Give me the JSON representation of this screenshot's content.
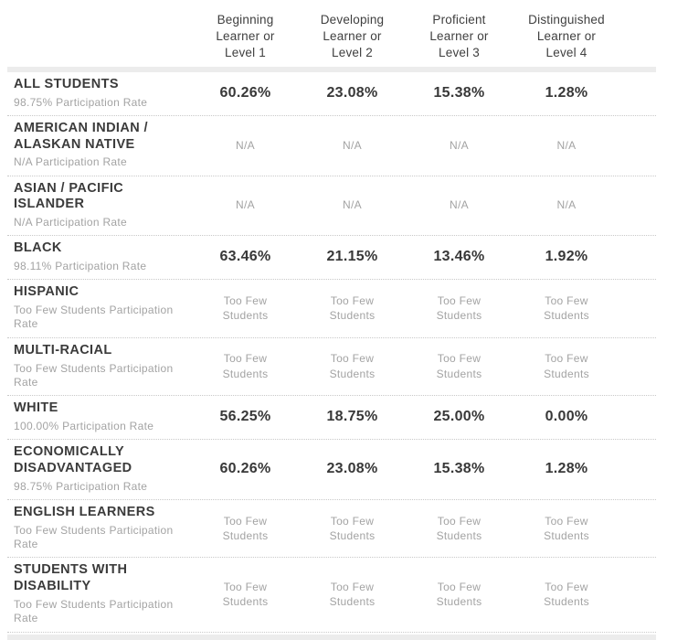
{
  "colors": {
    "text_dark": "#3b3b3b",
    "text_muted": "#a3a3a3",
    "divider_dotted": "#c9c9c9",
    "band_gray": "#ececec",
    "background": "#ffffff"
  },
  "chart_data": {
    "type": "table",
    "columns": [
      "Beginning Learner or Level 1",
      "Developing Learner or Level 2",
      "Proficient Learner or Level 3",
      "Distinguished Learner or Level 4"
    ],
    "rows": [
      {
        "name": "ALL STUDENTS",
        "participation": "98.75% Participation Rate",
        "values": [
          "60.26%",
          "23.08%",
          "15.38%",
          "1.28%"
        ]
      },
      {
        "name": "AMERICAN INDIAN / ALASKAN NATIVE",
        "participation": "N/A Participation Rate",
        "values": [
          "N/A",
          "N/A",
          "N/A",
          "N/A"
        ]
      },
      {
        "name": "ASIAN / PACIFIC ISLANDER",
        "participation": "N/A Participation Rate",
        "values": [
          "N/A",
          "N/A",
          "N/A",
          "N/A"
        ]
      },
      {
        "name": "BLACK",
        "participation": "98.11% Participation Rate",
        "values": [
          "63.46%",
          "21.15%",
          "13.46%",
          "1.92%"
        ]
      },
      {
        "name": "HISPANIC",
        "participation": "Too Few Students Participation Rate",
        "values": [
          "Too Few Students",
          "Too Few Students",
          "Too Few Students",
          "Too Few Students"
        ]
      },
      {
        "name": "MULTI-RACIAL",
        "participation": "Too Few Students Participation Rate",
        "values": [
          "Too Few Students",
          "Too Few Students",
          "Too Few Students",
          "Too Few Students"
        ]
      },
      {
        "name": "WHITE",
        "participation": "100.00% Participation Rate",
        "values": [
          "56.25%",
          "18.75%",
          "25.00%",
          "0.00%"
        ]
      },
      {
        "name": "ECONOMICALLY DISADVANTAGED",
        "participation": "98.75% Participation Rate",
        "values": [
          "60.26%",
          "23.08%",
          "15.38%",
          "1.28%"
        ]
      },
      {
        "name": "ENGLISH LEARNERS",
        "participation": "Too Few Students Participation Rate",
        "values": [
          "Too Few Students",
          "Too Few Students",
          "Too Few Students",
          "Too Few Students"
        ]
      },
      {
        "name": "STUDENTS WITH DISABILITY",
        "participation": "Too Few Students Participation Rate",
        "values": [
          "Too Few Students",
          "Too Few Students",
          "Too Few Students",
          "Too Few Students"
        ]
      }
    ]
  }
}
